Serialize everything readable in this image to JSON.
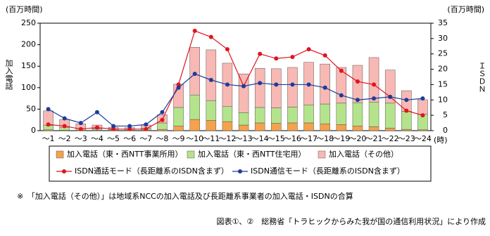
{
  "chart_data": {
    "type": "bar",
    "stacked": true,
    "y_unit": "(百万時間)",
    "y2_unit": "(百万時間)",
    "y_title": "加入電話",
    "y2_title": "ＩＳＤＮ",
    "x_unit": "(時)",
    "categories": [
      "～1",
      "～2",
      "～3",
      "～4",
      "～5",
      "～6",
      "～7",
      "～8",
      "～9",
      "～10",
      "～11",
      "～12",
      "～13",
      "～14",
      "～15",
      "～16",
      "～17",
      "～18",
      "～19",
      "～20",
      "～21",
      "～22",
      "～23",
      "～24"
    ],
    "ylim": [
      0,
      250
    ],
    "yticks": [
      0,
      50,
      100,
      150,
      200,
      250
    ],
    "y2lim": [
      0,
      35
    ],
    "y2ticks": [
      0,
      5,
      10,
      15,
      20,
      25,
      30,
      35
    ],
    "series": [
      {
        "name": "加入電話（東・西NTT事業所用）",
        "type": "bar",
        "color": "#f4a24c",
        "values": [
          2,
          1,
          1,
          1,
          1,
          1,
          1,
          3,
          11,
          26,
          24,
          21,
          13,
          18,
          17,
          18,
          18,
          16,
          14,
          11,
          9,
          6,
          3,
          2
        ]
      },
      {
        "name": "加入電話（東・西NTT住宅用）",
        "type": "bar",
        "color": "#b4e38c",
        "values": [
          10,
          6,
          4,
          3,
          2,
          2,
          4,
          15,
          43,
          57,
          46,
          35,
          29,
          36,
          36,
          37,
          42,
          46,
          50,
          54,
          57,
          58,
          42,
          36
        ]
      },
      {
        "name": "加入電話（その他）",
        "type": "bar",
        "color": "#f8b8b4",
        "values": [
          34,
          19,
          11,
          9,
          5,
          4,
          8,
          19,
          54,
          111,
          118,
          101,
          90,
          91,
          91,
          92,
          99,
          93,
          83,
          87,
          104,
          77,
          48,
          34
        ]
      },
      {
        "name": "ISDN通話モード（長距離系のISDN含まず）",
        "type": "line",
        "axis": "y2",
        "color": "#e0141e",
        "values": [
          2,
          1.5,
          0.5,
          1,
          0.5,
          0.5,
          0.5,
          3.5,
          15,
          32.5,
          30.5,
          26.5,
          14.5,
          25,
          23.5,
          24,
          26.5,
          24.5,
          19.5,
          16,
          15,
          11,
          6.5,
          5
        ]
      },
      {
        "name": "ISDN通信モード（長距離系のISDN含まず）",
        "type": "line",
        "axis": "y2",
        "color": "#1c3c9c",
        "values": [
          7,
          4,
          2.5,
          6,
          1.5,
          1.5,
          2,
          6,
          14,
          18.5,
          16.5,
          15,
          14.5,
          15.5,
          15,
          15,
          15,
          14,
          11.5,
          10,
          10.5,
          11,
          10,
          10.5
        ]
      }
    ]
  },
  "footnote": "※　「加入電話（その他）」は地域系NCCの加入電話及び長距離系事業者の加入電話・ISDNの合算",
  "source": "図表①、②　総務省「トラヒックからみた我が国の通信利用状況」により作成"
}
